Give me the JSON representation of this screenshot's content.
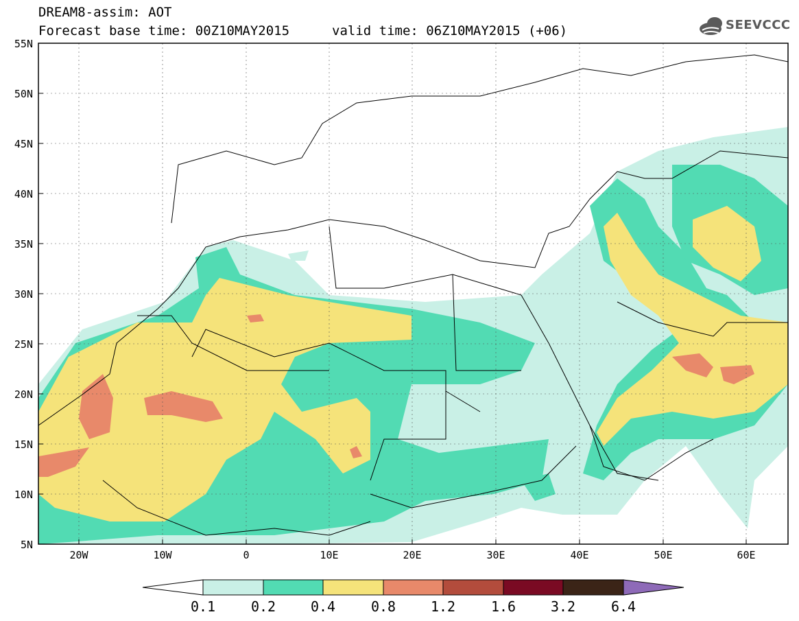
{
  "header": {
    "title": "DREAM8-assim: AOT",
    "base_time": "Forecast base time: 00Z10MAY2015",
    "valid_time": "valid time: 06Z10MAY2015 (+06)",
    "logo_text": "SEEVCCC"
  },
  "axes": {
    "lat_labels": [
      "55N",
      "50N",
      "45N",
      "40N",
      "35N",
      "30N",
      "25N",
      "20N",
      "15N",
      "10N",
      "5N"
    ],
    "lon_labels": [
      "20W",
      "10W",
      "0",
      "10E",
      "20E",
      "30E",
      "40E",
      "50E",
      "60E"
    ]
  },
  "colorbar": {
    "levels": [
      "0.1",
      "0.2",
      "0.4",
      "0.8",
      "1.2",
      "1.6",
      "3.2",
      "6.4"
    ],
    "colors": [
      "#ffffff",
      "#c9f0e6",
      "#52dbb3",
      "#f5e37a",
      "#e8896a",
      "#b34c3c",
      "#7a0a23",
      "#3b2417",
      "#8e6ab8"
    ]
  },
  "map": {
    "variable": "AOT",
    "lon_range": [
      -25,
      65
    ],
    "lat_range": [
      5,
      55
    ],
    "field_colors": {
      "c01": "#c9f0e6",
      "c02": "#52dbb3",
      "c04": "#f5e37a",
      "c08": "#e8896a"
    }
  }
}
